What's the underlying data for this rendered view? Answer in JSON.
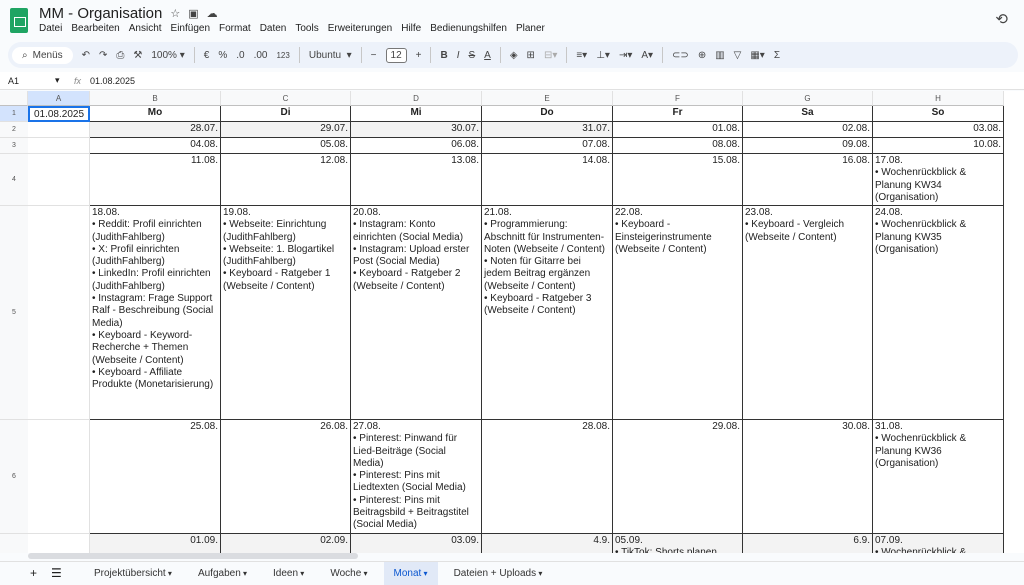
{
  "app": {
    "title": "MM - Organisation",
    "menu": [
      "Datei",
      "Bearbeiten",
      "Ansicht",
      "Einfügen",
      "Format",
      "Daten",
      "Tools",
      "Erweiterungen",
      "Hilfe",
      "Bedienungshilfen",
      "Planer"
    ]
  },
  "toolbar": {
    "search": "Menüs",
    "zoom": "100%",
    "currency": "€",
    "percent": "%",
    "dec_minus": ".0",
    "dec_plus": ".00",
    "number_format": "123",
    "font": "Ubuntu",
    "font_size": "12"
  },
  "formula_bar": {
    "cell_ref": "A1",
    "fx": "fx",
    "value": "01.08.2025"
  },
  "columns": [
    "A",
    "B",
    "C",
    "D",
    "E",
    "F",
    "G",
    "H"
  ],
  "rows": [
    "1",
    "2",
    "3",
    "4",
    "5",
    "6",
    ""
  ],
  "grid": [
    [
      "01.08.2025",
      "Mo",
      "Di",
      "Mi",
      "Do",
      "Fr",
      "Sa",
      "So"
    ],
    [
      "",
      "28.07.",
      "29.07.",
      "30.07.",
      "31.07.",
      "01.08.",
      "02.08.",
      "03.08."
    ],
    [
      "",
      "04.08.",
      "05.08.",
      "06.08.",
      "07.08.",
      "08.08.",
      "09.08.",
      "10.08."
    ],
    [
      "",
      "11.08.",
      "12.08.",
      "13.08.",
      "14.08.",
      "15.08.",
      "16.08.",
      "17.08.\n• Wochenrückblick & Planung KW34 (Organisation)"
    ],
    [
      "",
      "18.08.\n• Reddit: Profil einrichten (JudithFahlberg)\n• X: Profil einrichten (JudithFahlberg)\n• LinkedIn: Profil einrichten (JudithFahlberg)\n• Instagram: Frage Support Ralf - Beschreibung (Social Media)\n• Keyboard - Keyword-Recherche + Themen (Webseite / Content)\n• Keyboard - Affiliate Produkte (Monetarisierung)",
      "19.08.\n• Webseite: Einrichtung (JudithFahlberg)\n• Webseite: 1. Blogartikel (JudithFahlberg)\n• Keyboard - Ratgeber 1 (Webseite / Content)",
      "20.08.\n• Instagram: Konto einrichten (Social Media)\n• Instagram: Upload erster Post (Social Media)\n• Keyboard - Ratgeber 2 (Webseite / Content)",
      "21.08.\n• Programmierung: Abschnitt für Instrumenten-Noten (Webseite / Content)\n• Noten für Gitarre bei jedem Beitrag ergänzen (Webseite / Content)\n• Keyboard - Ratgeber 3 (Webseite / Content)",
      "22.08.\n• Keyboard - Einsteigerinstrumente (Webseite / Content)",
      "23.08.\n• Keyboard - Vergleich (Webseite / Content)",
      "24.08.\n• Wochenrückblick & Planung KW35 (Organisation)"
    ],
    [
      "",
      "25.08.",
      "26.08.",
      "27.08.\n• Pinterest: Pinwand für Lied-Beiträge (Social Media)\n• Pinterest: Pins mit Liedtexten (Social Media)\n• Pinterest: Pins mit Beitragsbild + Beitragstitel (Social Media)",
      "28.08.",
      "29.08.",
      "30.08.",
      "31.08.\n• Wochenrückblick & Planung KW36 (Organisation)"
    ],
    [
      "",
      "01.09.",
      "02.09.",
      "03.09.",
      "4.9.",
      "05.09.\n• TikTok: Shorts planen",
      "6.9.",
      "07.09.\n• Wochenrückblick &"
    ]
  ],
  "sheets": [
    {
      "label": "Projektübersicht"
    },
    {
      "label": "Aufgaben"
    },
    {
      "label": "Ideen"
    },
    {
      "label": "Woche"
    },
    {
      "label": "Monat",
      "active": true
    },
    {
      "label": "Dateien + Uploads"
    }
  ]
}
